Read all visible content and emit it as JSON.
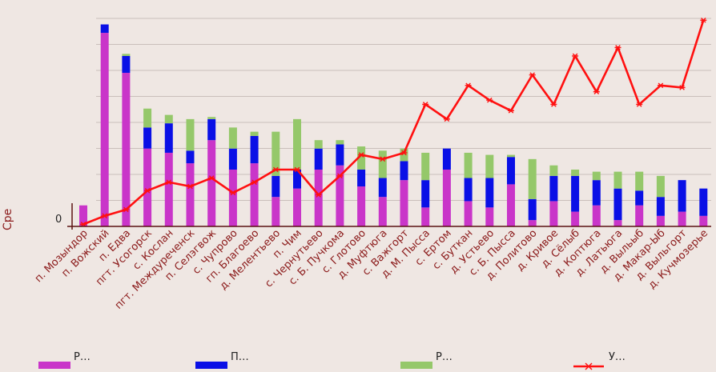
{
  "chart_data": {
    "type": "bar",
    "stacked": true,
    "ylabel": "Сре",
    "y_tick_labels": [
      "0"
    ],
    "ylim": [
      0,
      100
    ],
    "grid": true,
    "legend_position": "bottom",
    "categories": [
      "п. Мозындор",
      "п. Вожский",
      "п. Едва",
      "пгт. Усогорск",
      "с. Кослан",
      "пгт. Междуреченск",
      "п. Селэгвож",
      "с. Чупрово",
      "гп. Благоево",
      "д. Мелентьево",
      "п. Чим",
      "с. Чернутьево",
      "с. Б. Пучкома",
      "с. Глотово",
      "д. Муфтюга",
      "с. Важгорт",
      "д. М. Пысса",
      "с. Ертом",
      "с. Буткан",
      "д. Устьево",
      "с. Б. Пысса",
      "д. Политово",
      "д. Кривое",
      "д. Сёлыб",
      "д. Коптюга",
      "д. Латьюга",
      "д. Выльыб",
      "д. Макар-Ыб",
      "д. Выльгорт",
      "д. Кучмозерье"
    ],
    "series": [
      {
        "name": "Р…",
        "color": "#c935c9",
        "values": [
          10,
          92,
          73,
          37,
          35,
          30,
          41,
          27,
          30,
          14,
          18,
          27,
          29,
          19,
          14,
          22,
          9,
          27,
          12,
          9,
          20,
          3,
          12,
          7,
          10,
          3,
          10,
          5,
          7,
          5
        ]
      },
      {
        "name": "П…",
        "color": "#0a10e6",
        "values": [
          0,
          4,
          8,
          10,
          14,
          6,
          10,
          10,
          13,
          10,
          9,
          10,
          10,
          8,
          9,
          9,
          13,
          10,
          11,
          14,
          13,
          10,
          12,
          17,
          12,
          15,
          7,
          9,
          15,
          13
        ]
      },
      {
        "name": "Р…",
        "color": "#95c86a",
        "values": [
          0,
          0,
          1,
          9,
          4,
          15,
          1,
          10,
          2,
          21,
          24,
          4,
          2,
          11,
          13,
          6,
          13,
          0,
          12,
          11,
          1,
          19,
          5,
          3,
          4,
          8,
          9,
          10,
          0,
          0
        ]
      },
      {
        "name": "У…",
        "color": "#ff1010",
        "type": "line",
        "values": [
          1,
          5,
          8,
          17,
          21,
          19,
          23,
          16,
          21,
          27,
          27,
          15,
          24,
          34,
          32,
          35,
          58,
          51,
          67,
          60,
          55,
          72,
          58,
          81,
          64,
          85,
          58,
          67,
          66,
          98
        ]
      }
    ]
  }
}
